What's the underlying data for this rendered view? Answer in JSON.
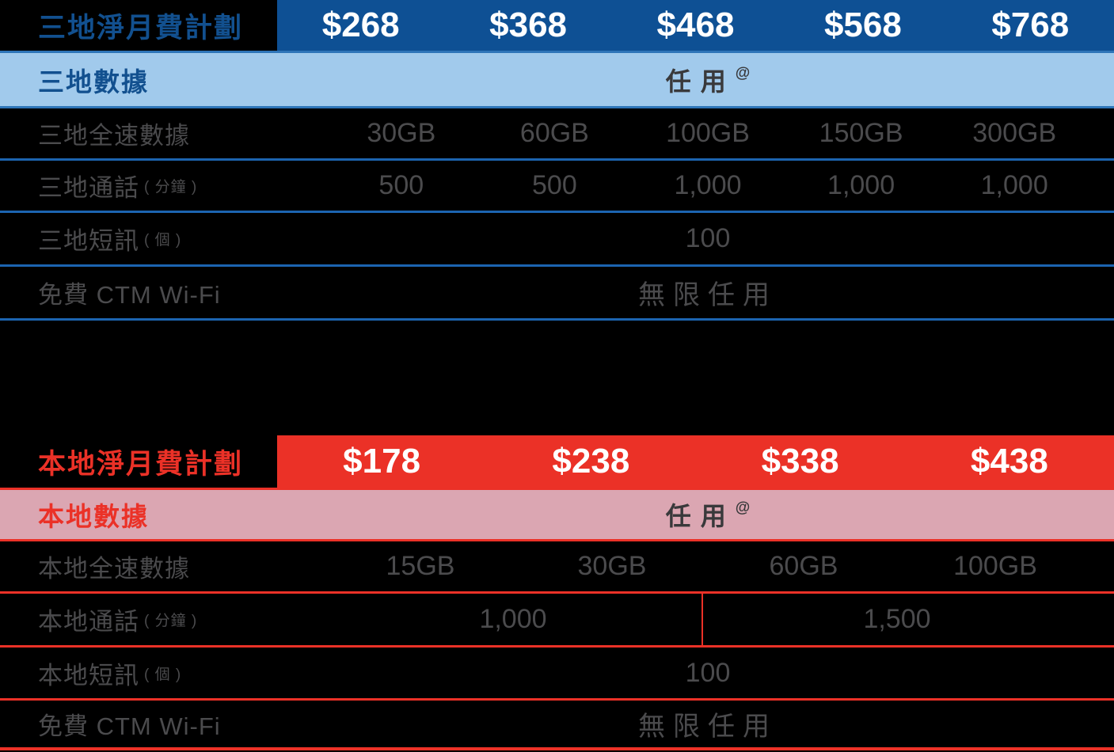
{
  "colors": {
    "tri_header_bg": "#0e5094",
    "tri_band_bg": "#a1caec",
    "tri_band_border": "#2e75b8",
    "tri_divider": "#1c64b0",
    "tri_title_text": "#12508f",
    "local_header_bg": "#eb3127",
    "local_band_bg": "#dba6b2",
    "local_accent": "#eb3127",
    "body_text": "#4b4b4d",
    "unlimited_text": "#39393b",
    "price_text": "#ffffff",
    "page_bg": "#000000"
  },
  "table_tri": {
    "title": "三地淨月費計劃",
    "prices": [
      "$268",
      "$368",
      "$468",
      "$568",
      "$768"
    ],
    "band": {
      "label": "三地數據",
      "value": "任用",
      "sup": "@"
    },
    "rows": [
      {
        "label": "三地全速數據",
        "values": [
          "30GB",
          "60GB",
          "100GB",
          "150GB",
          "300GB"
        ]
      },
      {
        "label": "三地通話",
        "label_sub": "( 分鐘 )",
        "values": [
          "500",
          "500",
          "1,000",
          "1,000",
          "1,000"
        ]
      },
      {
        "label": "三地短訊",
        "label_sub": "( 個 )",
        "value": "100"
      },
      {
        "label": "免費 CTM Wi-Fi",
        "value": "無限任用"
      }
    ]
  },
  "table_local": {
    "title": "本地淨月費計劃",
    "prices": [
      "$178",
      "$238",
      "$338",
      "$438"
    ],
    "band": {
      "label": "本地數據",
      "value": "任用",
      "sup": "@"
    },
    "rows": [
      {
        "label": "本地全速數據",
        "values": [
          "15GB",
          "30GB",
          "60GB",
          "100GB"
        ]
      },
      {
        "label": "本地通話",
        "label_sub": "( 分鐘 )",
        "values": [
          "1,000",
          "1,500"
        ]
      },
      {
        "label": "本地短訊",
        "label_sub": "( 個 )",
        "value": "100"
      },
      {
        "label": "免費 CTM Wi-Fi",
        "value": "無限任用"
      }
    ]
  }
}
